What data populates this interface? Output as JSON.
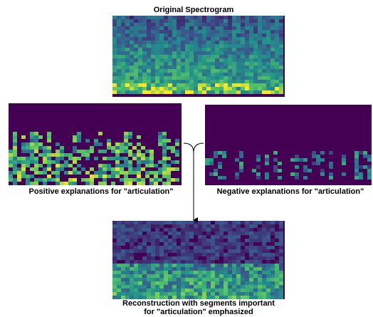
{
  "top": {
    "title": "Original Spectrogram"
  },
  "left": {
    "caption": "Positive explanations for \"articulation\""
  },
  "right": {
    "caption": "Negative explanations for \"articulation\""
  },
  "bottom": {
    "caption_lines": [
      "Reconstruction with segments important",
      "for \"articulation\" emphasized"
    ]
  }
}
